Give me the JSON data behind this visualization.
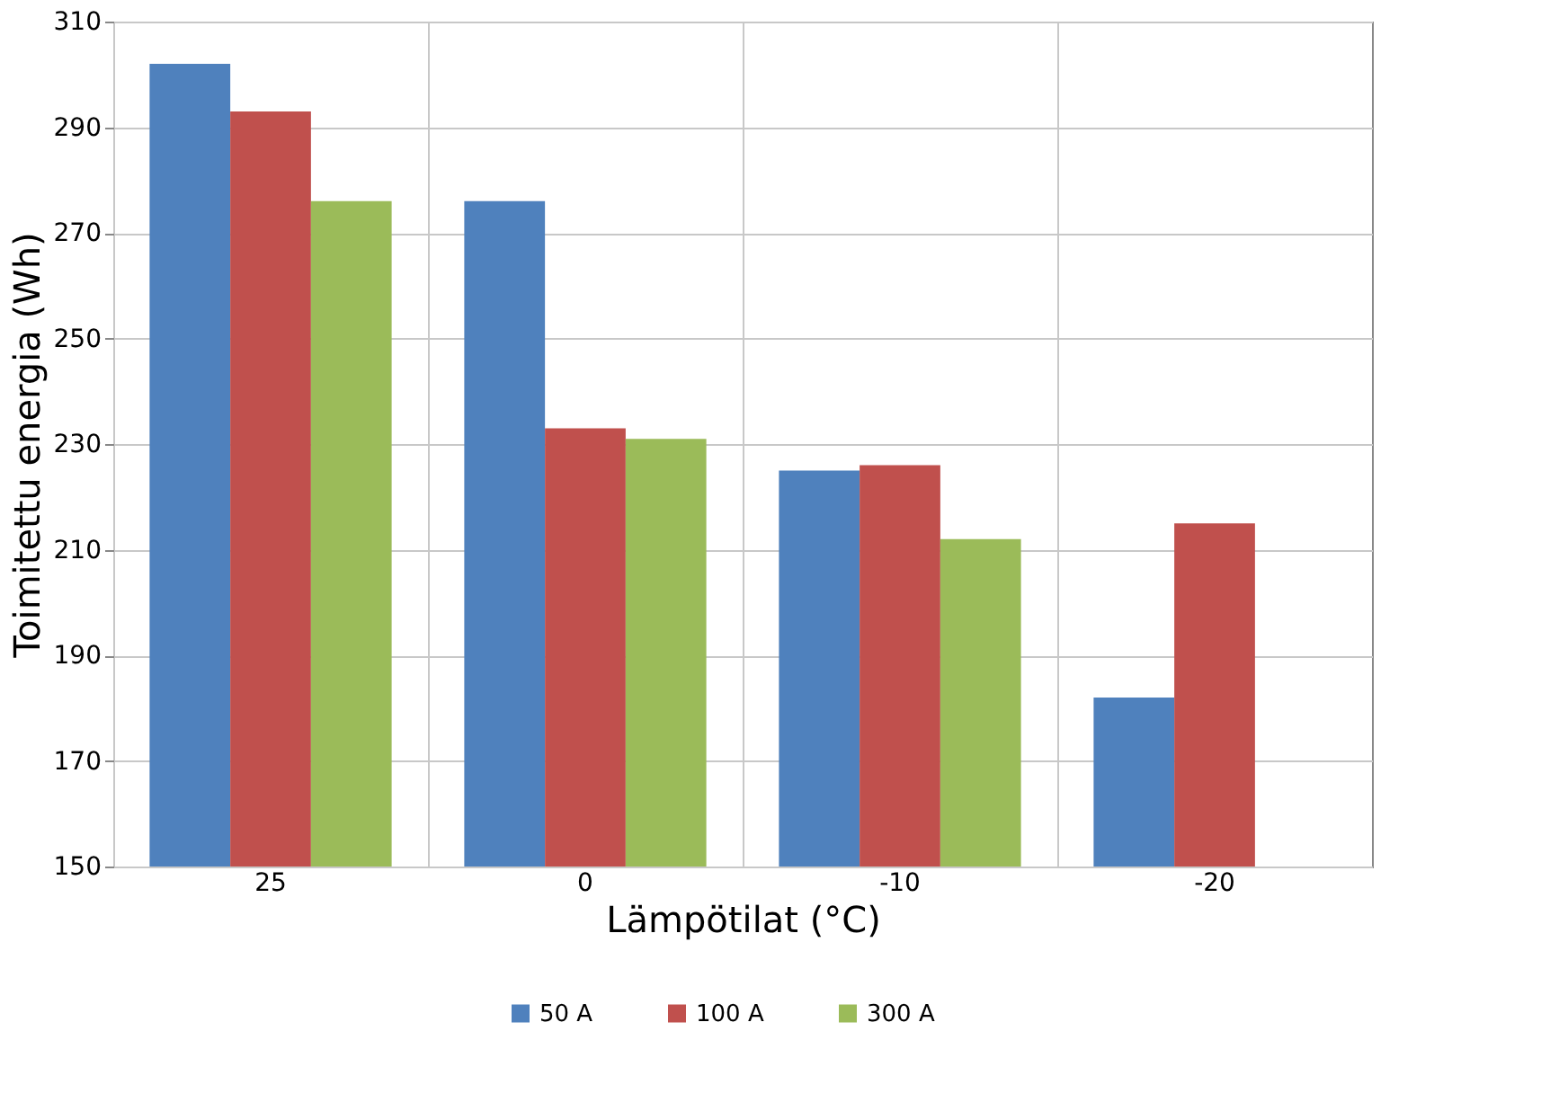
{
  "chart_data": {
    "type": "bar",
    "xlabel": "Lämpötilat (°C)",
    "ylabel": "Toimitettu energia (Wh)",
    "categories": [
      "25",
      "0",
      "-10",
      "-20"
    ],
    "series": [
      {
        "name": "50 A",
        "color": "#4f81bd",
        "values": [
          302,
          276,
          225,
          182
        ]
      },
      {
        "name": "100 A",
        "color": "#c0504d",
        "values": [
          293,
          233,
          226,
          215
        ]
      },
      {
        "name": "300 A",
        "color": "#9bbb59",
        "values": [
          276,
          231,
          212,
          null
        ]
      }
    ],
    "ylim": [
      150,
      310
    ],
    "yticks": [
      150,
      170,
      190,
      210,
      230,
      250,
      270,
      290,
      310
    ],
    "grid": true,
    "legend": "bottom"
  }
}
